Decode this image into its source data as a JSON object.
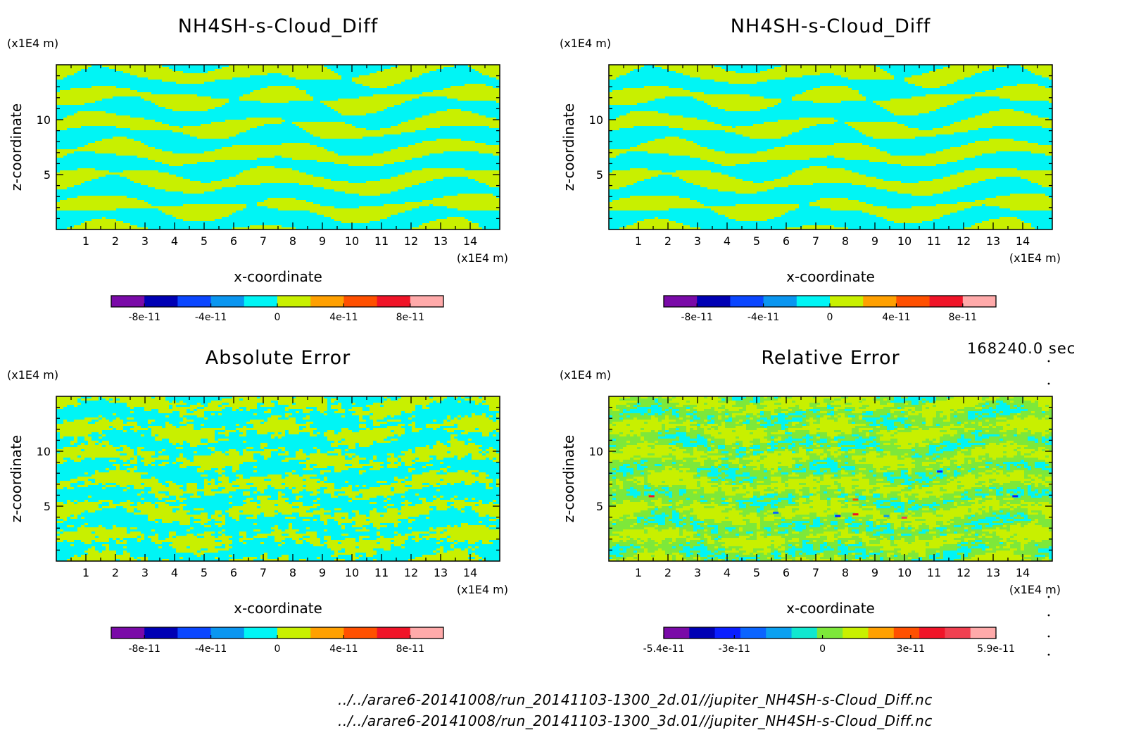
{
  "colors": {
    "background": "#ffffff",
    "cyan": "#00f5f5",
    "yellowgreen": "#c8f000",
    "green": "#7de83a",
    "frame": "#000000"
  },
  "figure": {
    "time": "168240.0 sec",
    "files": [
      "../../arare6-20141008/run_20141103-1300_2d.01//jupiter_NH4SH-s-Cloud_Diff.nc",
      "../../arare6-20141008/run_20141103-1300_3d.01//jupiter_NH4SH-s-Cloud_Diff.nc"
    ]
  },
  "chart_data": [
    {
      "type": "heatmap",
      "title": "NH4SH-s-Cloud_Diff",
      "xlabel": "x-coordinate",
      "ylabel": "z-coordinate",
      "x_unit": "(x1E4 m)",
      "y_unit": "(x1E4 m)",
      "xlim": [
        0,
        15
      ],
      "ylim": [
        0,
        15
      ],
      "xticks": [
        1,
        2,
        3,
        4,
        5,
        6,
        7,
        8,
        9,
        10,
        11,
        12,
        13,
        14
      ],
      "yticks": [
        5,
        10
      ],
      "colorbar": {
        "min": -1e-10,
        "max": 1e-10,
        "colors": [
          "#7a0aa8",
          "#0000b4",
          "#0a46ff",
          "#0a96f0",
          "#00f5f5",
          "#c8f000",
          "#ffa000",
          "#ff5000",
          "#f01428",
          "#ffaaaa"
        ],
        "tick_labels": [
          "-8e-11",
          "-4e-11",
          "0",
          "4e-11",
          "8e-11"
        ]
      },
      "field": {
        "pattern": "bands",
        "seed": 1
      }
    },
    {
      "type": "heatmap",
      "title": "NH4SH-s-Cloud_Diff",
      "xlabel": "x-coordinate",
      "ylabel": "z-coordinate",
      "x_unit": "(x1E4 m)",
      "y_unit": "(x1E4 m)",
      "xlim": [
        0,
        15
      ],
      "ylim": [
        0,
        15
      ],
      "xticks": [
        1,
        2,
        3,
        4,
        5,
        6,
        7,
        8,
        9,
        10,
        11,
        12,
        13,
        14
      ],
      "yticks": [
        5,
        10
      ],
      "colorbar": {
        "min": -1e-10,
        "max": 1e-10,
        "colors": [
          "#7a0aa8",
          "#0000b4",
          "#0a46ff",
          "#0a96f0",
          "#00f5f5",
          "#c8f000",
          "#ffa000",
          "#ff5000",
          "#f01428",
          "#ffaaaa"
        ],
        "tick_labels": [
          "-8e-11",
          "-4e-11",
          "0",
          "4e-11",
          "8e-11"
        ]
      },
      "field": {
        "pattern": "bands",
        "seed": 1
      }
    },
    {
      "type": "heatmap",
      "title": "Absolute Error",
      "xlabel": "x-coordinate",
      "ylabel": "z-coordinate",
      "x_unit": "(x1E4 m)",
      "y_unit": "(x1E4 m)",
      "xlim": [
        0,
        15
      ],
      "ylim": [
        0,
        15
      ],
      "xticks": [
        1,
        2,
        3,
        4,
        5,
        6,
        7,
        8,
        9,
        10,
        11,
        12,
        13,
        14
      ],
      "yticks": [
        5,
        10
      ],
      "colorbar": {
        "min": -1e-10,
        "max": 1e-10,
        "colors": [
          "#7a0aa8",
          "#0000b4",
          "#0a46ff",
          "#0a96f0",
          "#00f5f5",
          "#c8f000",
          "#ffa000",
          "#ff5000",
          "#f01428",
          "#ffaaaa"
        ],
        "tick_labels": [
          "-8e-11",
          "-4e-11",
          "0",
          "4e-11",
          "8e-11"
        ]
      },
      "field": {
        "pattern": "noisy",
        "seed": 2
      }
    },
    {
      "type": "heatmap",
      "title": "Relative Error",
      "xlabel": "x-coordinate",
      "ylabel": "z-coordinate",
      "x_unit": "(x1E4 m)",
      "y_unit": "(x1E4 m)",
      "xlim": [
        0,
        15
      ],
      "ylim": [
        0,
        15
      ],
      "xticks": [
        1,
        2,
        3,
        4,
        5,
        6,
        7,
        8,
        9,
        10,
        11,
        12,
        13,
        14
      ],
      "yticks": [
        5,
        10
      ],
      "colorbar": {
        "min": -5.4e-11,
        "max": 5.9e-11,
        "colors": [
          "#7a0aa8",
          "#0000b4",
          "#0a1eff",
          "#0a64ff",
          "#0aa0f0",
          "#10e8d0",
          "#7de83a",
          "#c8f000",
          "#ffa000",
          "#ff5000",
          "#f01428",
          "#f04050",
          "#ffaaaa"
        ],
        "tick_labels": [
          "-5.4e-11",
          "-3e-11",
          "0",
          "3e-11",
          "5.9e-11"
        ]
      },
      "field": {
        "pattern": "relative",
        "seed": 3
      }
    }
  ]
}
